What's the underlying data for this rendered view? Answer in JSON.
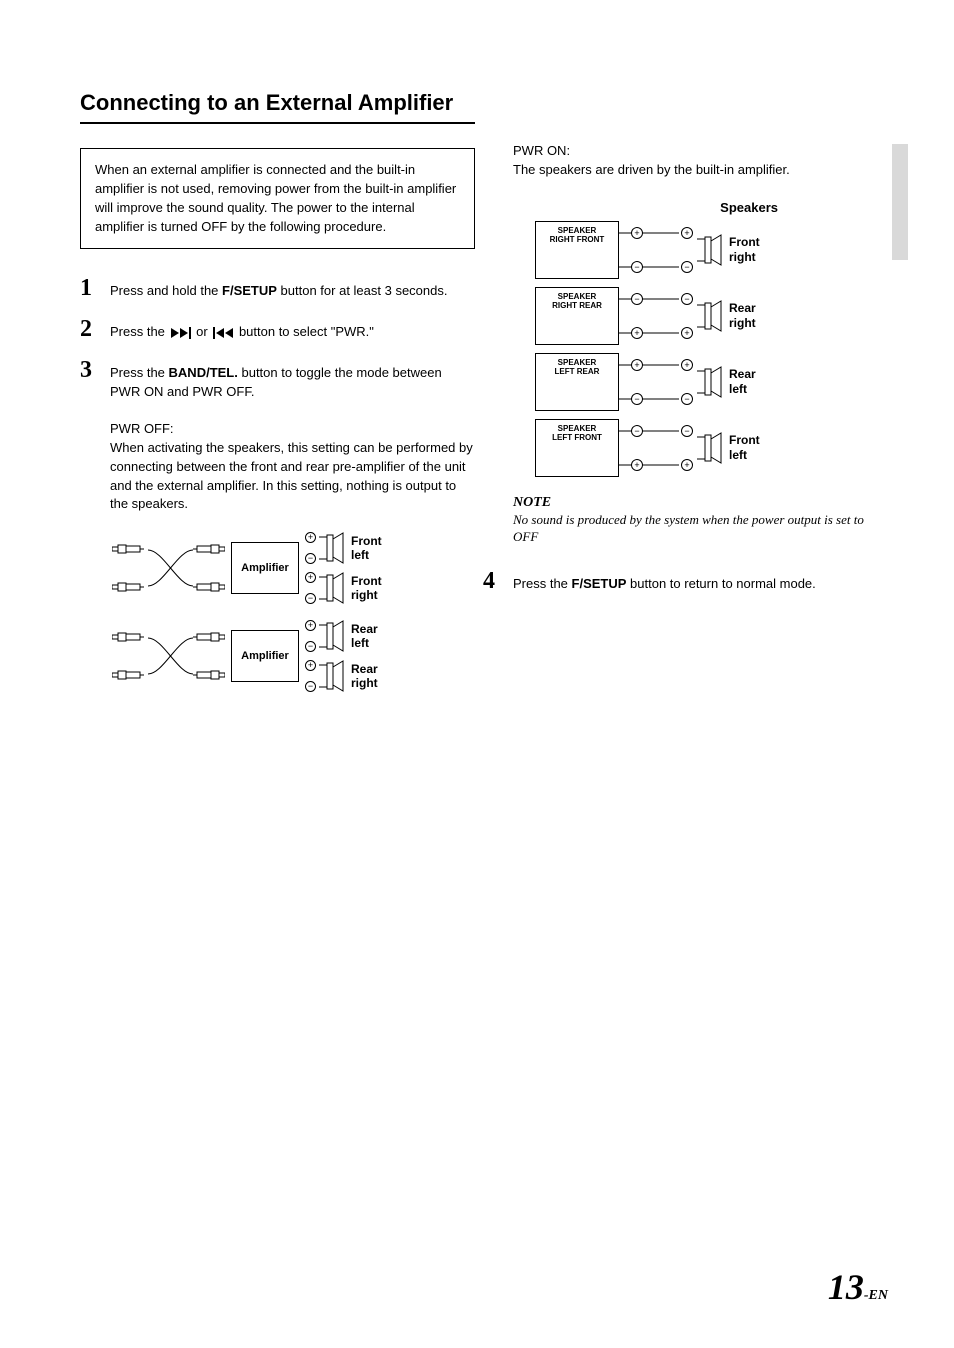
{
  "title": "Connecting to an External Amplifier",
  "intro": "When an external amplifier is connected and the built-in amplifier is not used, removing power from the built-in amplifier will improve the sound quality. The power to the internal amplifier is turned OFF by the following procedure.",
  "steps": {
    "s1": {
      "num": "1",
      "pre": "Press and hold the ",
      "btn": "F/SETUP",
      "post": " button for at least 3 seconds."
    },
    "s2": {
      "num": "2",
      "pre": "Press the ",
      "post": " button to select \"PWR.\""
    },
    "s3": {
      "num": "3",
      "pre": "Press the ",
      "btn": "BAND/TEL.",
      "post": " button to toggle the mode between PWR ON and PWR OFF."
    },
    "s4": {
      "num": "4",
      "pre": "Press the ",
      "btn": "F/SETUP",
      "post": " button to return to normal mode."
    }
  },
  "pwrOff": {
    "title": "PWR OFF:",
    "text": "When activating the speakers, this setting can be performed by connecting between the front and rear pre-amplifier of the unit and the external amplifier. In this setting, nothing is output to the speakers."
  },
  "ampDiagram": {
    "ampLabel": "Amplifier",
    "outputs": [
      {
        "label": "Front\nleft"
      },
      {
        "label": "Front\nright"
      },
      {
        "label": "Rear\nleft"
      },
      {
        "label": "Rear\nright"
      }
    ]
  },
  "pwrOn": {
    "title": "PWR ON:",
    "text": "The speakers are driven by the built-in amplifier.",
    "speakersHeading": "Speakers",
    "blocks": [
      {
        "name1": "SPEAKER",
        "name2": "RIGHT FRONT",
        "topPol": "+",
        "botPol": "−",
        "spkTop": "+",
        "spkBot": "−",
        "label": "Front\nright"
      },
      {
        "name1": "SPEAKER",
        "name2": "RIGHT REAR",
        "topPol": "−",
        "botPol": "+",
        "spkTop": "−",
        "spkBot": "+",
        "label": "Rear\nright"
      },
      {
        "name1": "SPEAKER",
        "name2": "LEFT REAR",
        "topPol": "+",
        "botPol": "−",
        "spkTop": "+",
        "spkBot": "−",
        "label": "Rear\nleft"
      },
      {
        "name1": "SPEAKER",
        "name2": "LEFT FRONT",
        "topPol": "−",
        "botPol": "+",
        "spkTop": "−",
        "spkBot": "+",
        "label": "Front\nleft"
      }
    ]
  },
  "note": {
    "title": "NOTE",
    "text": "No sound is produced by the system when the power output is set to OFF"
  },
  "pageNumber": {
    "num": "13",
    "suffix": "-EN"
  },
  "colors": {
    "text": "#000000",
    "background": "#ffffff",
    "sideTab": "#d9d9d9"
  }
}
